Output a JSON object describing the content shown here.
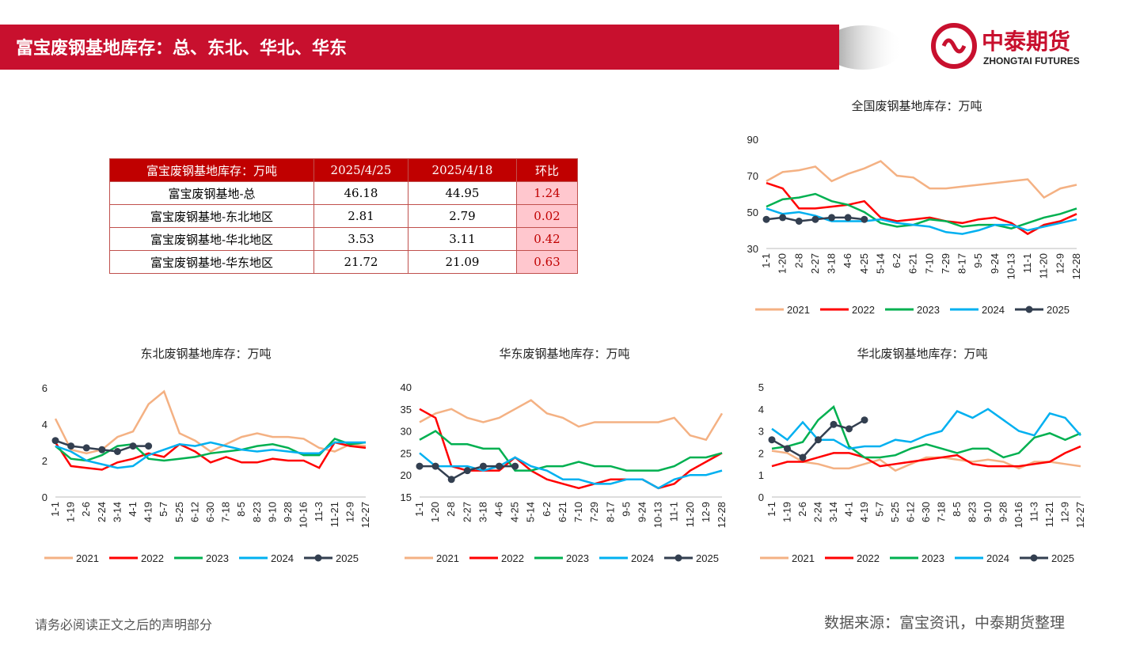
{
  "header": {
    "title": "富宝废钢基地库存：总、东北、华北、华东",
    "logo_cn": "中泰期货",
    "logo_en": "ZHONGTAI FUTURES"
  },
  "table": {
    "columns": [
      "富宝废钢基地库存：万吨",
      "2025/4/25",
      "2025/4/18",
      "环比"
    ],
    "rows": [
      [
        "富宝废钢基地-总",
        46.18,
        44.95,
        1.24
      ],
      [
        "富宝废钢基地-东北地区",
        2.81,
        2.79,
        0.02
      ],
      [
        "富宝废钢基地-华北地区",
        3.53,
        3.11,
        0.42
      ],
      [
        "富宝废钢基地-华东地区",
        21.72,
        21.09,
        0.63
      ]
    ]
  },
  "chart_data": [
    {
      "type": "line",
      "title": "全国废钢基地库存：万吨",
      "categories": [
        "1-1",
        "1-20",
        "2-8",
        "2-27",
        "3-18",
        "4-6",
        "4-25",
        "5-14",
        "6-2",
        "6-21",
        "7-10",
        "7-29",
        "8-17",
        "9-5",
        "9-24",
        "10-13",
        "11-1",
        "11-20",
        "12-9",
        "12-28"
      ],
      "ylim": [
        30,
        90
      ],
      "yticks": [
        30,
        50,
        70,
        90
      ],
      "series": [
        {
          "name": "2021",
          "color": "#f4b183",
          "values": [
            67,
            72,
            73,
            75,
            67,
            71,
            74,
            78,
            70,
            69,
            63,
            63,
            64,
            65,
            66,
            67,
            68,
            58,
            63,
            65
          ]
        },
        {
          "name": "2022",
          "color": "#ff0000",
          "values": [
            66,
            63,
            52,
            52,
            53,
            54,
            56,
            47,
            45,
            46,
            47,
            45,
            44,
            46,
            47,
            44,
            38,
            43,
            45,
            49
          ]
        },
        {
          "name": "2023",
          "color": "#00b050",
          "values": [
            53,
            57,
            58,
            60,
            56,
            54,
            50,
            44,
            42,
            43,
            46,
            45,
            42,
            43,
            43,
            41,
            44,
            47,
            49,
            52
          ]
        },
        {
          "name": "2024",
          "color": "#00b0f0",
          "values": [
            52,
            49,
            50,
            48,
            45,
            45,
            45,
            46,
            44,
            43,
            42,
            39,
            38,
            40,
            43,
            43,
            40,
            42,
            44,
            46
          ]
        },
        {
          "name": "2025",
          "color": "#333f50",
          "marker": "circle",
          "values": [
            46,
            47,
            45,
            46,
            47,
            47,
            46,
            null,
            null,
            null,
            null,
            null,
            null,
            null,
            null,
            null,
            null,
            null,
            null,
            null
          ]
        }
      ]
    },
    {
      "type": "line",
      "title": "东北废钢基地库存：万吨",
      "categories": [
        "1-1",
        "1-19",
        "2-6",
        "2-24",
        "3-14",
        "4-1",
        "4-19",
        "5-7",
        "5-25",
        "6-12",
        "6-30",
        "7-18",
        "8-5",
        "8-23",
        "9-10",
        "9-28",
        "10-16",
        "11-3",
        "11-21",
        "12-9",
        "12-27"
      ],
      "ylim": [
        0,
        6
      ],
      "yticks": [
        0,
        2,
        4,
        6
      ],
      "series": [
        {
          "name": "2021",
          "color": "#f4b183",
          "values": [
            4.3,
            2.6,
            2.4,
            2.6,
            3.3,
            3.6,
            5.1,
            5.8,
            3.5,
            3.1,
            2.5,
            2.9,
            3.3,
            3.5,
            3.3,
            3.3,
            3.2,
            2.7,
            2.5,
            2.9,
            2.8
          ]
        },
        {
          "name": "2022",
          "color": "#ff0000",
          "values": [
            3.0,
            1.7,
            1.6,
            1.5,
            1.9,
            2.1,
            2.4,
            2.2,
            2.9,
            2.5,
            1.9,
            2.2,
            1.9,
            1.9,
            2.1,
            2.0,
            2.0,
            1.6,
            3.0,
            2.8,
            2.7
          ]
        },
        {
          "name": "2023",
          "color": "#00b050",
          "values": [
            2.8,
            2.1,
            2.0,
            2.3,
            2.8,
            2.9,
            2.1,
            2.0,
            2.1,
            2.2,
            2.4,
            2.5,
            2.6,
            2.8,
            2.9,
            2.7,
            2.3,
            2.3,
            3.2,
            2.9,
            3.0
          ]
        },
        {
          "name": "2024",
          "color": "#00b0f0",
          "values": [
            2.8,
            2.5,
            2.0,
            1.8,
            1.6,
            1.7,
            2.3,
            2.6,
            2.9,
            2.8,
            3.0,
            2.8,
            2.6,
            2.5,
            2.6,
            2.5,
            2.4,
            2.4,
            3.0,
            3.0,
            3.0
          ]
        },
        {
          "name": "2025",
          "color": "#333f50",
          "marker": "circle",
          "values": [
            3.1,
            2.8,
            2.7,
            2.6,
            2.5,
            2.8,
            2.8,
            null,
            null,
            null,
            null,
            null,
            null,
            null,
            null,
            null,
            null,
            null,
            null,
            null,
            null
          ]
        }
      ]
    },
    {
      "type": "line",
      "title": "华东废钢基地库存：万吨",
      "categories": [
        "1-1",
        "1-20",
        "2-8",
        "2-27",
        "3-18",
        "4-6",
        "4-25",
        "5-14",
        "6-2",
        "6-21",
        "7-10",
        "7-29",
        "8-17",
        "9-5",
        "9-24",
        "10-13",
        "11-1",
        "11-20",
        "12-9",
        "12-28"
      ],
      "ylim": [
        15,
        40
      ],
      "yticks": [
        15,
        20,
        25,
        30,
        35,
        40
      ],
      "series": [
        {
          "name": "2021",
          "color": "#f4b183",
          "values": [
            32,
            34,
            35,
            33,
            32,
            33,
            35,
            37,
            34,
            33,
            31,
            32,
            32,
            32,
            32,
            32,
            33,
            29,
            28,
            34
          ]
        },
        {
          "name": "2022",
          "color": "#ff0000",
          "values": [
            35,
            33,
            22,
            21,
            21,
            21,
            24,
            21,
            19,
            18,
            17,
            18,
            19,
            19,
            19,
            17,
            18,
            21,
            23,
            25
          ]
        },
        {
          "name": "2023",
          "color": "#00b050",
          "values": [
            28,
            30,
            27,
            27,
            26,
            26,
            21,
            21,
            22,
            22,
            23,
            22,
            22,
            21,
            21,
            21,
            22,
            24,
            24,
            25
          ]
        },
        {
          "name": "2024",
          "color": "#00b0f0",
          "values": [
            25,
            22,
            22,
            22,
            21,
            22,
            24,
            22,
            21,
            19,
            19,
            18,
            18,
            19,
            19,
            17,
            19,
            20,
            20,
            21
          ]
        },
        {
          "name": "2025",
          "color": "#333f50",
          "marker": "circle",
          "values": [
            22,
            22,
            19,
            21,
            22,
            22,
            22,
            null,
            null,
            null,
            null,
            null,
            null,
            null,
            null,
            null,
            null,
            null,
            null,
            null
          ]
        }
      ]
    },
    {
      "type": "line",
      "title": "华北废钢基地库存：万吨",
      "categories": [
        "1-1",
        "1-19",
        "2-6",
        "2-24",
        "3-14",
        "4-1",
        "4-19",
        "5-7",
        "5-25",
        "6-12",
        "6-30",
        "7-18",
        "8-5",
        "8-23",
        "9-10",
        "9-28",
        "10-16",
        "11-3",
        "11-21",
        "12-9",
        "12-27"
      ],
      "ylim": [
        0,
        5
      ],
      "yticks": [
        0,
        1,
        2,
        3,
        4,
        5
      ],
      "series": [
        {
          "name": "2021",
          "color": "#f4b183",
          "values": [
            2.1,
            2.0,
            1.6,
            1.5,
            1.3,
            1.3,
            1.5,
            1.7,
            1.2,
            1.5,
            1.8,
            1.8,
            1.7,
            1.6,
            1.7,
            1.6,
            1.3,
            1.6,
            1.6,
            1.5,
            1.4
          ]
        },
        {
          "name": "2022",
          "color": "#ff0000",
          "values": [
            1.4,
            1.6,
            1.6,
            1.8,
            2.0,
            2.0,
            1.8,
            1.4,
            1.5,
            1.6,
            1.7,
            1.8,
            1.9,
            1.5,
            1.4,
            1.4,
            1.4,
            1.5,
            1.6,
            2.0,
            2.3
          ]
        },
        {
          "name": "2023",
          "color": "#00b050",
          "values": [
            2.2,
            2.3,
            2.5,
            3.5,
            4.1,
            2.3,
            1.8,
            1.8,
            1.9,
            2.2,
            2.4,
            2.2,
            2.0,
            2.2,
            2.2,
            1.8,
            2.0,
            2.7,
            2.9,
            2.6,
            2.9
          ]
        },
        {
          "name": "2024",
          "color": "#00b0f0",
          "values": [
            3.1,
            2.6,
            3.4,
            2.6,
            2.6,
            2.2,
            2.3,
            2.3,
            2.6,
            2.5,
            2.8,
            3.0,
            3.9,
            3.6,
            4.0,
            3.5,
            3.0,
            2.8,
            3.8,
            3.6,
            2.8
          ]
        },
        {
          "name": "2025",
          "color": "#333f50",
          "marker": "circle",
          "values": [
            2.6,
            2.2,
            1.8,
            2.6,
            3.3,
            3.1,
            3.5,
            null,
            null,
            null,
            null,
            null,
            null,
            null,
            null,
            null,
            null,
            null,
            null,
            null,
            null
          ]
        }
      ]
    }
  ],
  "footer": {
    "disclaimer": "请务必阅读正文之后的声明部分",
    "source": "数据来源：富宝资讯，中泰期货整理"
  }
}
